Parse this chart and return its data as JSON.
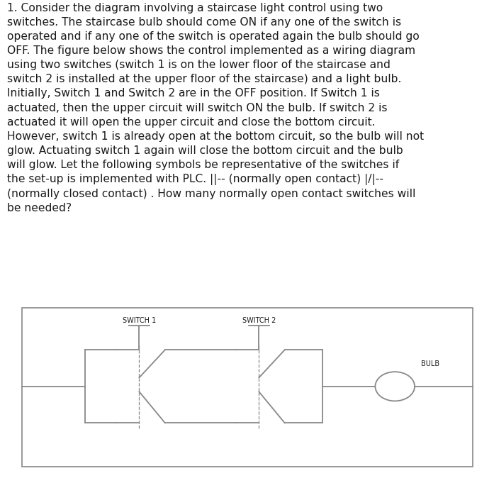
{
  "title_text": "1. Consider the diagram involving a staircase light control using two\nswitches. The staircase bulb should come ON if any one of the switch is\noperated and if any one of the switch is operated again the bulb should go\nOFF. The figure below shows the control implemented as a wiring diagram\nusing two switches (switch 1 is on the lower floor of the staircase and\nswitch 2 is installed at the upper floor of the staircase) and a light bulb.\nInitially, Switch 1 and Switch 2 are in the OFF position. If Switch 1 is\nactuated, then the upper circuit will switch ON the bulb. If switch 2 is\nactuated it will open the upper circuit and close the bottom circuit.\nHowever, switch 1 is already open at the bottom circuit, so the bulb will not\nglow. Actuating switch 1 again will close the bottom circuit and the bulb\nwill glow. Let the following symbols be representative of the switches if\nthe set-up is implemented with PLC. ||-- (normally open contact) |/|--\n(normally closed contact) . How many normally open contact switches will\nbe needed?",
  "bg_color": "#ffffff",
  "text_color": "#1a1a1a",
  "diagram_border_color": "#888888",
  "switch1_label": "SWITCH 1",
  "switch2_label": "SWITCH 2",
  "bulb_label": "BULB",
  "line_color": "#888888",
  "font_size_text": 11.2,
  "font_size_label": 7.0
}
